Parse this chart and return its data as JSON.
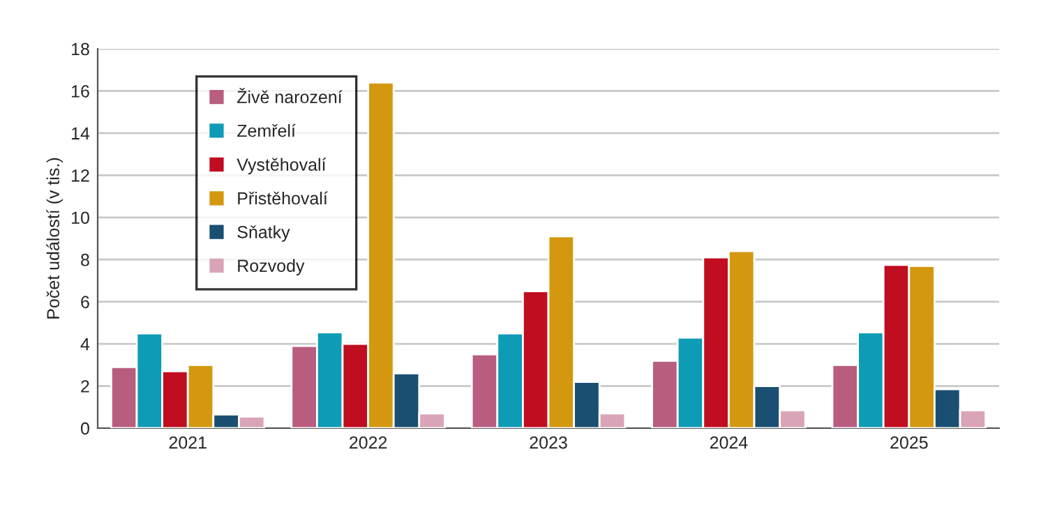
{
  "chart_data": {
    "type": "bar",
    "ylabel": "Počet událostí (v tis.)",
    "categories": [
      "2021",
      "2022",
      "2023",
      "2024",
      "2025"
    ],
    "series": [
      {
        "name": "Živě narození",
        "color": "#b85c80",
        "values": [
          2.9,
          3.9,
          3.5,
          3.2,
          3.0
        ]
      },
      {
        "name": "Zemřelí",
        "color": "#0e9bb5",
        "values": [
          4.5,
          4.55,
          4.5,
          4.3,
          4.55
        ]
      },
      {
        "name": "Vystěhovalí",
        "color": "#c00d20",
        "values": [
          2.7,
          4.0,
          6.5,
          8.1,
          7.75
        ]
      },
      {
        "name": "Přistěhovalí",
        "color": "#d4980f",
        "values": [
          3.0,
          16.4,
          9.1,
          8.4,
          7.7
        ]
      },
      {
        "name": "Sňatky",
        "color": "#1b4f72",
        "values": [
          0.65,
          2.6,
          2.2,
          2.0,
          1.85
        ]
      },
      {
        "name": "Rozvody",
        "color": "#d9a3b8",
        "values": [
          0.55,
          0.7,
          0.7,
          0.85,
          0.85
        ]
      }
    ],
    "ylim": [
      0,
      18
    ],
    "yticks": [
      0,
      2,
      4,
      6,
      8,
      10,
      12,
      14,
      16,
      18
    ],
    "grid": "y",
    "legend": "top left"
  }
}
